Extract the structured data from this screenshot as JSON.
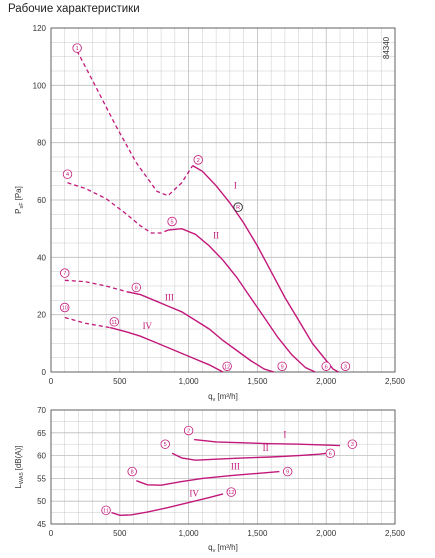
{
  "page": {
    "heading": "Рабочие характеристики",
    "code": "84340"
  },
  "colors": {
    "curve": "#c2187a",
    "grid": "#bdbdbd",
    "axis": "#555555",
    "text": "#333333",
    "marker": "#333333"
  },
  "chart_data": [
    {
      "type": "line",
      "title": "",
      "xlabel_main": "q",
      "xlabel_sub": "v",
      "xlabel_unit": "[m³/h]",
      "ylabel_main": "P",
      "ylabel_sub": "sF",
      "ylabel_unit": "[Pa]",
      "xlim": [
        0,
        2500
      ],
      "ylim": [
        0,
        120
      ],
      "xticks": [
        0,
        500,
        1000,
        1500,
        2000,
        2500
      ],
      "xtick_labels": [
        "0",
        "500",
        "1,000",
        "1,500",
        "2,000",
        "2,500"
      ],
      "yticks": [
        0,
        20,
        40,
        60,
        80,
        100,
        120
      ],
      "ytick_labels": [
        "0",
        "20",
        "40",
        "60",
        "80",
        "100",
        "120"
      ],
      "grid": true,
      "series": [
        {
          "name": "I",
          "label_at": [
            1340,
            64
          ],
          "dashed": [
            [
              190,
              112
            ],
            [
              320,
              100
            ],
            [
              470,
              86
            ],
            [
              620,
              73
            ],
            [
              770,
              63
            ],
            [
              850,
              61.5
            ],
            [
              950,
              66
            ],
            [
              1030,
              72
            ]
          ],
          "solid": [
            [
              1030,
              72
            ],
            [
              1100,
              70
            ],
            [
              1200,
              65
            ],
            [
              1300,
              59
            ],
            [
              1400,
              52
            ],
            [
              1500,
              44
            ],
            [
              1600,
              35
            ],
            [
              1700,
              26
            ],
            [
              1800,
              18
            ],
            [
              1900,
              10
            ],
            [
              2000,
              4
            ],
            [
              2050,
              1
            ],
            [
              2090,
              0
            ]
          ]
        },
        {
          "name": "II",
          "label_at": [
            1200,
            46.5
          ],
          "dashed": [
            [
              120,
              66
            ],
            [
              250,
              64
            ],
            [
              400,
              60.5
            ],
            [
              550,
              55
            ],
            [
              650,
              51
            ],
            [
              730,
              48.5
            ],
            [
              800,
              48.5
            ],
            [
              850,
              49.5
            ]
          ],
          "solid": [
            [
              850,
              49.5
            ],
            [
              950,
              50
            ],
            [
              1050,
              48
            ],
            [
              1150,
              44
            ],
            [
              1250,
              39
            ],
            [
              1350,
              33
            ],
            [
              1450,
              26
            ],
            [
              1550,
              19
            ],
            [
              1650,
              12
            ],
            [
              1750,
              6
            ],
            [
              1850,
              1.5
            ],
            [
              1920,
              0
            ]
          ]
        },
        {
          "name": "III",
          "label_at": [
            860,
            25
          ],
          "dashed": [
            [
              100,
              32
            ],
            [
              250,
              31.5
            ],
            [
              400,
              30
            ],
            [
              550,
              28
            ]
          ],
          "solid": [
            [
              550,
              28
            ],
            [
              650,
              27
            ],
            [
              750,
              25
            ],
            [
              850,
              23
            ],
            [
              950,
              21
            ],
            [
              1050,
              18
            ],
            [
              1150,
              15
            ],
            [
              1250,
              11
            ],
            [
              1350,
              7.5
            ],
            [
              1450,
              4
            ],
            [
              1550,
              1
            ],
            [
              1620,
              0
            ]
          ]
        },
        {
          "name": "IV",
          "label_at": [
            700,
            15
          ],
          "dashed": [
            [
              100,
              19
            ],
            [
              250,
              17
            ],
            [
              430,
              15.5
            ]
          ],
          "solid": [
            [
              430,
              15.5
            ],
            [
              550,
              14
            ],
            [
              650,
              12.5
            ],
            [
              750,
              10.5
            ],
            [
              850,
              8.5
            ],
            [
              950,
              6.5
            ],
            [
              1050,
              4.5
            ],
            [
              1150,
              2.5
            ],
            [
              1250,
              0
            ]
          ]
        }
      ],
      "points": [
        {
          "id": "1",
          "x": 190,
          "y": 113
        },
        {
          "id": "2",
          "x": 1070,
          "y": 74
        },
        {
          "id": "3",
          "x": 2140,
          "y": 2
        },
        {
          "id": "4",
          "x": 120,
          "y": 69
        },
        {
          "id": "5",
          "x": 880,
          "y": 52.5
        },
        {
          "id": "6",
          "x": 2000,
          "y": 2
        },
        {
          "id": "7",
          "x": 100,
          "y": 34.5
        },
        {
          "id": "8",
          "x": 620,
          "y": 29.5
        },
        {
          "id": "9",
          "x": 1680,
          "y": 2
        },
        {
          "id": "10",
          "x": 100,
          "y": 22.5
        },
        {
          "id": "11",
          "x": 460,
          "y": 17.5
        },
        {
          "id": "12",
          "x": 1280,
          "y": 2
        }
      ],
      "marker": {
        "id": "R",
        "x": 1360,
        "y": 57.5
      }
    },
    {
      "type": "line",
      "title": "",
      "xlabel_main": "q",
      "xlabel_sub": "v",
      "xlabel_unit": "[m³/h]",
      "ylabel_main": "L",
      "ylabel_sub": "WA5",
      "ylabel_unit": "[dB(A)]",
      "xlim": [
        0,
        2500
      ],
      "ylim": [
        45,
        70
      ],
      "xticks": [
        0,
        500,
        1000,
        1500,
        2000,
        2500
      ],
      "xtick_labels": [
        "0",
        "500",
        "1,000",
        "1,500",
        "2,000",
        "2,500"
      ],
      "yticks": [
        45,
        50,
        55,
        60,
        65,
        70
      ],
      "ytick_labels": [
        "45",
        "50",
        "55",
        "60",
        "65",
        "70"
      ],
      "grid": true,
      "series": [
        {
          "name": "I",
          "label_at": [
            1700,
            64
          ],
          "points": [
            [
              1040,
              63.5
            ],
            [
              1200,
              63
            ],
            [
              1400,
              62.8
            ],
            [
              1600,
              62.6
            ],
            [
              1800,
              62.5
            ],
            [
              2000,
              62.3
            ],
            [
              2100,
              62.2
            ]
          ]
        },
        {
          "name": "II",
          "label_at": [
            1560,
            61
          ],
          "points": [
            [
              880,
              60.5
            ],
            [
              950,
              59.5
            ],
            [
              1050,
              59
            ],
            [
              1200,
              59.2
            ],
            [
              1400,
              59.5
            ],
            [
              1600,
              59.7
            ],
            [
              1800,
              60
            ],
            [
              1950,
              60.3
            ],
            [
              2000,
              60.5
            ]
          ]
        },
        {
          "name": "III",
          "label_at": [
            1340,
            57
          ],
          "points": [
            [
              620,
              54.5
            ],
            [
              700,
              53.6
            ],
            [
              800,
              53.5
            ],
            [
              950,
              54.3
            ],
            [
              1100,
              55
            ],
            [
              1300,
              55.6
            ],
            [
              1500,
              56.1
            ],
            [
              1660,
              56.5
            ]
          ]
        },
        {
          "name": "IV",
          "label_at": [
            1040,
            51
          ],
          "points": [
            [
              440,
              47.5
            ],
            [
              500,
              46.9
            ],
            [
              580,
              47
            ],
            [
              700,
              47.6
            ],
            [
              850,
              48.6
            ],
            [
              1000,
              49.7
            ],
            [
              1150,
              50.8
            ],
            [
              1250,
              51.6
            ]
          ]
        }
      ],
      "points": [
        {
          "id": "2",
          "x": 1000,
          "y": 65.5
        },
        {
          "id": "3",
          "x": 2190,
          "y": 62.5
        },
        {
          "id": "5",
          "x": 830,
          "y": 62.5
        },
        {
          "id": "6",
          "x": 2030,
          "y": 60.5
        },
        {
          "id": "8",
          "x": 590,
          "y": 56.5
        },
        {
          "id": "9",
          "x": 1720,
          "y": 56.5
        },
        {
          "id": "11",
          "x": 400,
          "y": 48
        },
        {
          "id": "12",
          "x": 1310,
          "y": 52
        }
      ]
    }
  ]
}
